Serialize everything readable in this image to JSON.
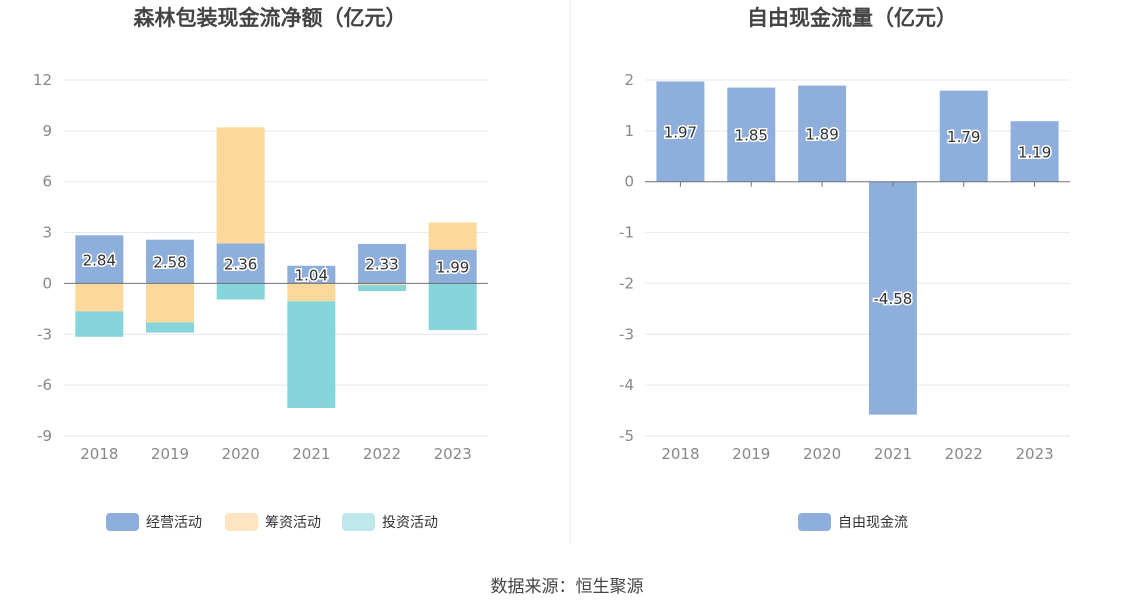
{
  "source_text": "数据来源：恒生聚源",
  "chart_data": [
    {
      "type": "bar",
      "stacked": true,
      "title": "森林包装现金流净额（亿元）",
      "categories": [
        "2018",
        "2019",
        "2020",
        "2021",
        "2022",
        "2023"
      ],
      "ylim": [
        -9,
        12
      ],
      "yticks": [
        12,
        9,
        6,
        3,
        0,
        -3,
        -6,
        -9
      ],
      "grid": true,
      "legend": "bottom",
      "series": [
        {
          "name": "经营活动",
          "color": "#8eaedc",
          "values": [
            2.84,
            2.58,
            2.36,
            1.04,
            2.33,
            1.99
          ],
          "labels": [
            "2.84",
            "2.58",
            "2.36",
            "1.04",
            "2.33",
            "1.99"
          ]
        },
        {
          "name": "筹资活动",
          "color": "#fdd89b",
          "legend_color": "#fde5c2",
          "values": [
            -1.65,
            -2.3,
            6.85,
            -1.05,
            -0.1,
            1.6
          ]
        },
        {
          "name": "投资活动",
          "color": "#85d5da",
          "legend_color": "#bfe8ec",
          "values": [
            -1.5,
            -0.6,
            -0.95,
            -6.3,
            -0.35,
            -2.75
          ]
        }
      ]
    },
    {
      "type": "bar",
      "title": "自由现金流量（亿元）",
      "categories": [
        "2018",
        "2019",
        "2020",
        "2021",
        "2022",
        "2023"
      ],
      "ylim": [
        -5,
        2
      ],
      "yticks": [
        2,
        1,
        0,
        -1,
        -2,
        -3,
        -4,
        -5
      ],
      "grid": true,
      "legend": "bottom",
      "series": [
        {
          "name": "自由现金流",
          "color": "#8eaedc",
          "values": [
            1.97,
            1.85,
            1.89,
            -4.58,
            1.79,
            1.19
          ],
          "labels": [
            "1.97",
            "1.85",
            "1.89",
            "-4.58",
            "1.79",
            "1.19"
          ]
        }
      ]
    }
  ]
}
